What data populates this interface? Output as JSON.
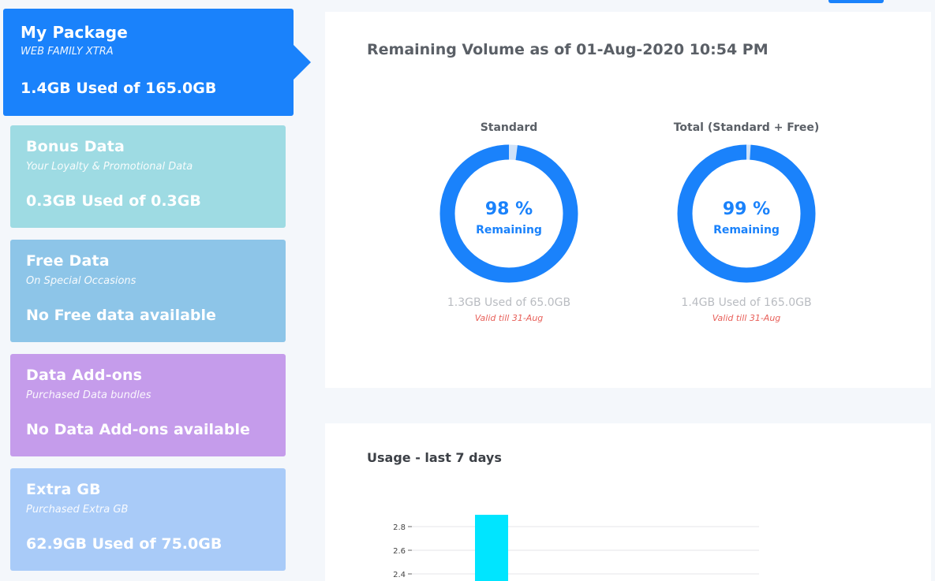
{
  "colors": {
    "primary": "#1a82fb",
    "gauge_track": "#cfe2f9",
    "bonus": "#9edbe3",
    "free": "#8dc5e8",
    "addons": "#c59ceb",
    "extra": "#a9cbf8",
    "valid_text": "#e8605a",
    "bar": "#00e5ff"
  },
  "sidebar": {
    "my_package": {
      "title": "My Package",
      "subtitle": "WEB FAMILY XTRA",
      "value": "1.4GB Used of 165.0GB"
    },
    "bonus": {
      "title": "Bonus Data",
      "subtitle": "Your Loyalty & Promotional Data",
      "value": "0.3GB Used of 0.3GB"
    },
    "free": {
      "title": "Free Data",
      "subtitle": "On Special Occasions",
      "value": "No Free data available"
    },
    "addons": {
      "title": "Data Add-ons",
      "subtitle": "Purchased Data bundles",
      "value": "No Data Add-ons available"
    },
    "extra": {
      "title": "Extra GB",
      "subtitle": "Purchased Extra GB",
      "value": "62.9GB Used of 75.0GB"
    }
  },
  "remaining": {
    "title": "Remaining Volume as of 01-Aug-2020 10:54 PM",
    "standard": {
      "label": "Standard",
      "percent_text": "98 %",
      "percent": 98,
      "remaining_label": "Remaining",
      "used": "1.3GB Used of 65.0GB",
      "valid": "Valid till 31-Aug"
    },
    "total": {
      "label": "Total (Standard + Free)",
      "percent_text": "99 %",
      "percent": 99,
      "remaining_label": "Remaining",
      "used": "1.4GB Used of 165.0GB",
      "valid": "Valid till 31-Aug"
    }
  },
  "usage": {
    "title": "Usage - last 7 days"
  },
  "chart_data": {
    "type": "bar",
    "title": "Usage - last 7 days",
    "y_ticks": [
      "2.8",
      "2.6",
      "2.4"
    ],
    "ylim_visible": [
      2.4,
      2.8
    ],
    "series": [
      {
        "values": [
          2.9
        ]
      }
    ]
  }
}
